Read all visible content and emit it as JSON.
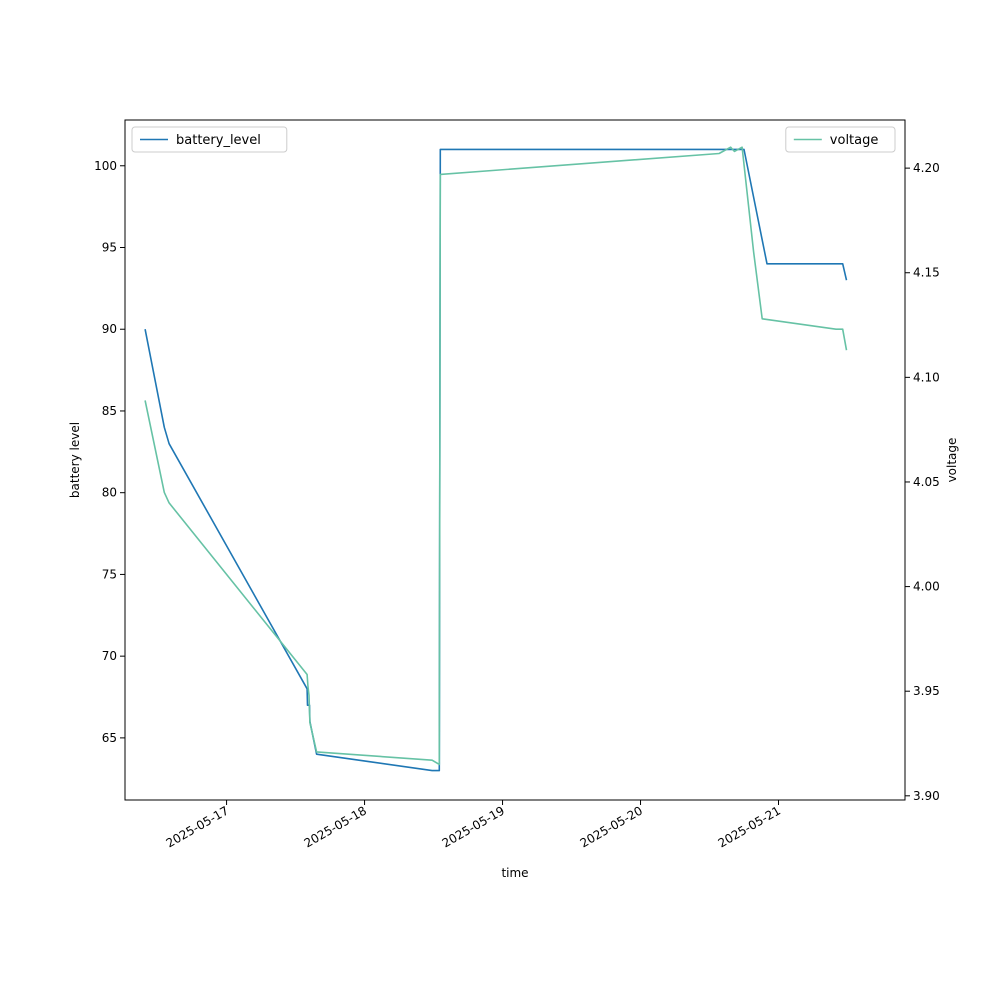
{
  "chart_data": {
    "type": "line",
    "xlabel": "time",
    "ylabel": "battery level",
    "y2label": "voltage",
    "x_ticks": [
      "2025-05-17",
      "2025-05-18",
      "2025-05-19",
      "2025-05-20",
      "2025-05-21"
    ],
    "y_ticks": [
      "65",
      "70",
      "75",
      "80",
      "85",
      "90",
      "95",
      "100"
    ],
    "y2_ticks": [
      "3.90",
      "3.95",
      "4.00",
      "4.05",
      "4.10",
      "4.15",
      "4.20"
    ],
    "xlim": [
      "2025-05-16 06:20",
      "2025-05-21 22:00"
    ],
    "ylim": [
      61.2,
      102.8
    ],
    "y2lim": [
      3.898,
      4.223
    ],
    "grid": false,
    "series": [
      {
        "name": "battery_level",
        "axis": "left",
        "color": "#1f77b4",
        "legend_position": "top-left",
        "points": [
          [
            "2025-05-16 09:50",
            90
          ],
          [
            "2025-05-16 13:10",
            84
          ],
          [
            "2025-05-16 14:00",
            83
          ],
          [
            "2025-05-17 14:00",
            68
          ],
          [
            "2025-05-17 14:05",
            67
          ],
          [
            "2025-05-17 14:25",
            67
          ],
          [
            "2025-05-17 14:30",
            66
          ],
          [
            "2025-05-17 15:40",
            64
          ],
          [
            "2025-05-18 11:45",
            63
          ],
          [
            "2025-05-18 13:00",
            63
          ],
          [
            "2025-05-18 13:10",
            101
          ],
          [
            "2025-05-20 18:00",
            101
          ],
          [
            "2025-05-20 22:00",
            94
          ],
          [
            "2025-05-21 11:10",
            94
          ],
          [
            "2025-05-21 11:50",
            93
          ]
        ]
      },
      {
        "name": "voltage",
        "axis": "right",
        "color": "#66c2a5",
        "legend_position": "top-right",
        "points": [
          [
            "2025-05-16 09:50",
            4.089
          ],
          [
            "2025-05-16 13:10",
            4.045
          ],
          [
            "2025-05-16 14:00",
            4.04
          ],
          [
            "2025-05-17 14:00",
            3.958
          ],
          [
            "2025-05-17 14:10",
            3.952
          ],
          [
            "2025-05-17 14:20",
            3.948
          ],
          [
            "2025-05-17 14:30",
            3.935
          ],
          [
            "2025-05-17 15:40",
            3.921
          ],
          [
            "2025-05-18 11:45",
            3.917
          ],
          [
            "2025-05-18 13:00",
            3.915
          ],
          [
            "2025-05-18 13:10",
            4.197
          ],
          [
            "2025-05-20 13:40",
            4.207
          ],
          [
            "2025-05-20 15:40",
            4.21
          ],
          [
            "2025-05-20 16:20",
            4.208
          ],
          [
            "2025-05-20 17:40",
            4.21
          ],
          [
            "2025-05-20 19:40",
            4.16
          ],
          [
            "2025-05-20 21:10",
            4.128
          ],
          [
            "2025-05-21 10:00",
            4.123
          ],
          [
            "2025-05-21 11:10",
            4.123
          ],
          [
            "2025-05-21 11:50",
            4.113
          ]
        ]
      }
    ]
  }
}
